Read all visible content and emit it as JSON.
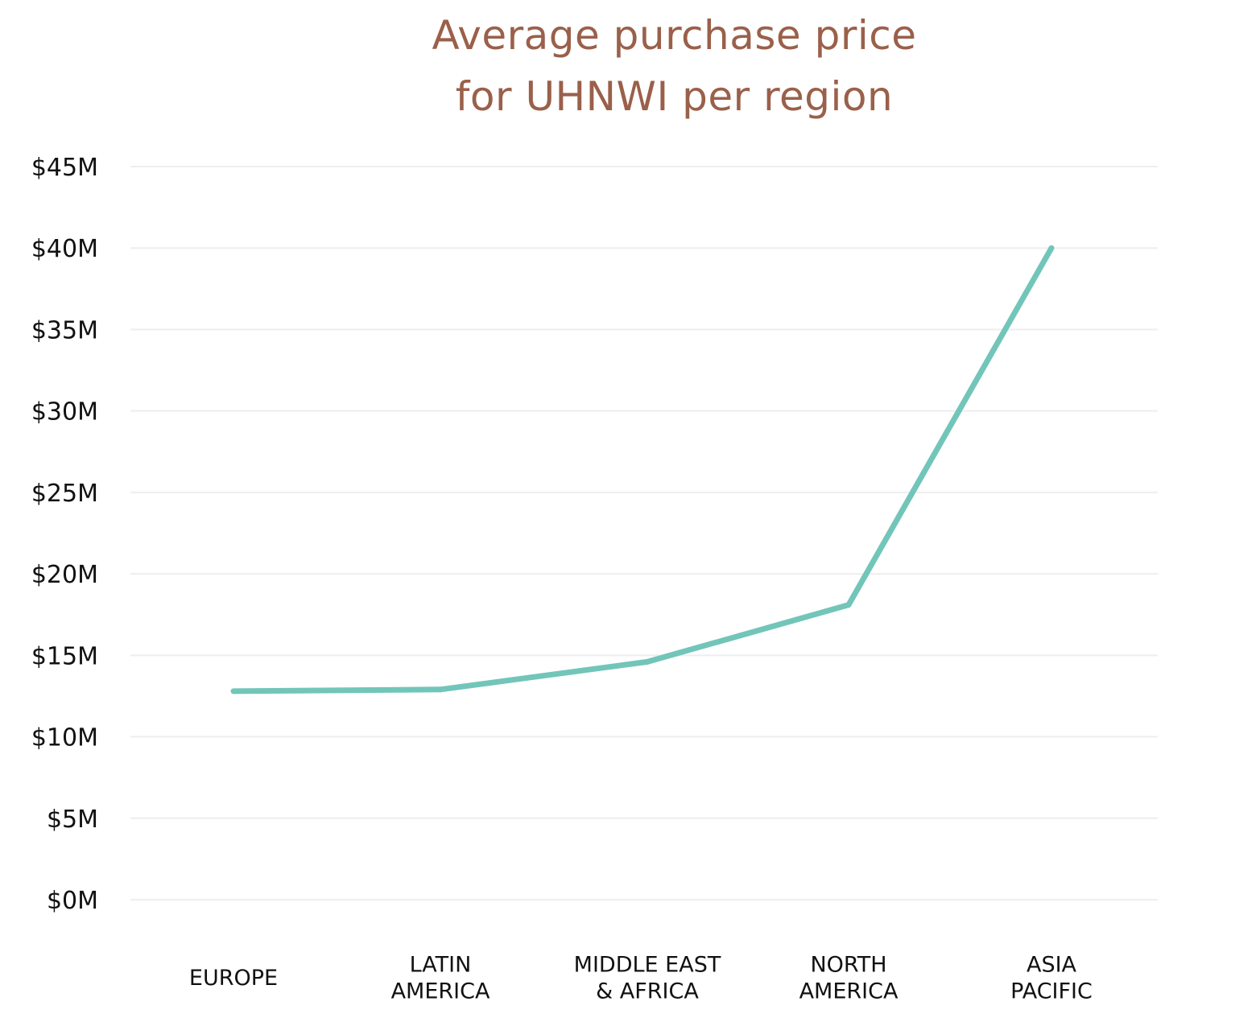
{
  "chart_data": {
    "type": "line",
    "title_lines": [
      "Average purchase price",
      "for UHNWI per region"
    ],
    "title": "Average purchase price for UHNWI per region",
    "xlabel": "",
    "ylabel": "",
    "categories": [
      "EUROPE",
      "LATIN AMERICA",
      "MIDDLE EAST & AFRICA",
      "NORTH AMERICA",
      "ASIA PACIFIC"
    ],
    "category_label_lines": [
      [
        "EUROPE"
      ],
      [
        "LATIN",
        "AMERICA"
      ],
      [
        "MIDDLE EAST",
        "& AFRICA"
      ],
      [
        "NORTH",
        "AMERICA"
      ],
      [
        "ASIA",
        "PACIFIC"
      ]
    ],
    "series": [
      {
        "values": [
          12.8,
          12.9,
          14.6,
          18.1,
          40.0
        ]
      }
    ],
    "ylim": [
      0,
      45
    ],
    "yticks": [
      0,
      5,
      10,
      15,
      20,
      25,
      30,
      35,
      40,
      45
    ],
    "ytick_labels": [
      "$0M",
      "$5M",
      "$10M",
      "$15M",
      "$20M",
      "$25M",
      "$30M",
      "$35M",
      "$40M",
      "$45M"
    ],
    "grid": true,
    "legend": "none",
    "colors": {
      "line": "#72c5b9",
      "grid": "#eeeeee",
      "title": "#9a604a",
      "text": "#111111"
    }
  }
}
